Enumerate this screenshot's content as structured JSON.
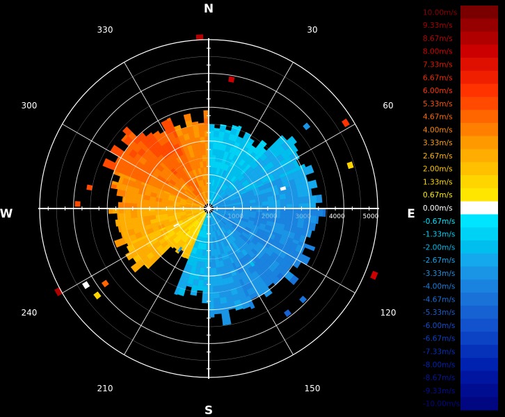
{
  "chart_data": {
    "type": "polar-ppi-velocity",
    "title": "",
    "compass": {
      "north": "N",
      "east": "E",
      "south": "S",
      "west": "W"
    },
    "azimuth_labels": [
      "30",
      "60",
      "120",
      "150",
      "210",
      "240",
      "300",
      "330"
    ],
    "azimuth_values": [
      30,
      60,
      120,
      150,
      210,
      240,
      300,
      330
    ],
    "range_labels": [
      "1000",
      "2000",
      "3000",
      "4000",
      "5000"
    ],
    "range_values": [
      1000,
      2000,
      3000,
      4000,
      5000
    ],
    "range_max": 5000,
    "grid": true,
    "legend_position": "right",
    "colorbar": {
      "unit": "m/s",
      "labels": [
        "10.00m/s",
        "9.33m/s",
        "8.67m/s",
        "8.00m/s",
        "7.33m/s",
        "6.67m/s",
        "6.00m/s",
        "5.33m/s",
        "4.67m/s",
        "4.00m/s",
        "3.33m/s",
        "2.67m/s",
        "2.00m/s",
        "1.33m/s",
        "0.67m/s",
        "0.00m/s",
        "-0.67m/s",
        "-1.33m/s",
        "-2.00m/s",
        "-2.67m/s",
        "-3.33m/s",
        "-4.00m/s",
        "-4.67m/s",
        "-5.33m/s",
        "-6.00m/s",
        "-6.67m/s",
        "-7.33m/s",
        "-8.00m/s",
        "-8.67m/s",
        "-9.33m/s",
        "-10.00m/s"
      ],
      "values": [
        10.0,
        9.33,
        8.67,
        8.0,
        7.33,
        6.67,
        6.0,
        5.33,
        4.67,
        4.0,
        3.33,
        2.67,
        2.0,
        1.33,
        0.67,
        0.0,
        -0.67,
        -1.33,
        -2.0,
        -2.67,
        -3.33,
        -4.0,
        -4.67,
        -5.33,
        -6.0,
        -6.67,
        -7.33,
        -8.0,
        -8.67,
        -9.33,
        -10.0
      ],
      "colors": [
        "#7a0000",
        "#960000",
        "#b00000",
        "#cc0000",
        "#e01000",
        "#f01f00",
        "#ff3300",
        "#ff4a00",
        "#ff6600",
        "#ff8000",
        "#ff9900",
        "#ffad00",
        "#ffc000",
        "#ffd500",
        "#ffe600",
        "#ffffff",
        "#00e5ff",
        "#00d2f5",
        "#00bfee",
        "#14a8ec",
        "#1a95e6",
        "#1a83e0",
        "#1872d8",
        "#1662d2",
        "#1252cc",
        "#0c42c4",
        "#0632ba",
        "#0022b0",
        "#0016a0",
        "#000d90",
        "#000780"
      ],
      "label_colors": [
        "#8b0000",
        "#a00000",
        "#b80000",
        "#d00000",
        "#e01a00",
        "#f02a00",
        "#ff3300",
        "#ff5000",
        "#ff6a00",
        "#ff8800",
        "#ffa000",
        "#ffb400",
        "#ffc800",
        "#ffdc00",
        "#ffee00",
        "#ffffff",
        "#00e5ff",
        "#00d0f5",
        "#00bcee",
        "#12a5ec",
        "#1892e6",
        "#1880e0",
        "#166fd8",
        "#145fd2",
        "#104fcc",
        "#0a40c4",
        "#0530ba",
        "#0022b0",
        "#0018a0",
        "#000f90",
        "#000880"
      ]
    },
    "velocity_field": {
      "description_values": "sector-wise approximate radial velocity (m/s) vs range (m)",
      "sectors": [
        {
          "az_start": 0,
          "az_end": 22,
          "max_range": 2600,
          "v_near": -2.0,
          "v_far": -1.3
        },
        {
          "az_start": 22,
          "az_end": 45,
          "max_range": 2500,
          "v_near": -2.5,
          "v_far": -1.3
        },
        {
          "az_start": 45,
          "az_end": 67,
          "max_range": 3200,
          "v_near": -3.0,
          "v_far": -2.0
        },
        {
          "az_start": 67,
          "az_end": 90,
          "max_range": 3400,
          "v_near": -3.3,
          "v_far": -2.7
        },
        {
          "az_start": 90,
          "az_end": 112,
          "max_range": 3400,
          "v_near": -3.3,
          "v_far": -4.0
        },
        {
          "az_start": 112,
          "az_end": 135,
          "max_range": 3300,
          "v_near": -3.3,
          "v_far": -4.0
        },
        {
          "az_start": 135,
          "az_end": 157,
          "max_range": 3300,
          "v_near": -2.7,
          "v_far": -4.0
        },
        {
          "az_start": 157,
          "az_end": 180,
          "max_range": 3400,
          "v_near": -2.7,
          "v_far": -3.3
        },
        {
          "az_start": 180,
          "az_end": 202,
          "max_range": 2700,
          "v_near": -1.3,
          "v_far": -2.7
        },
        {
          "az_start": 202,
          "az_end": 225,
          "max_range": 1600,
          "v_near": 0.7,
          "v_far": 2.0
        },
        {
          "az_start": 225,
          "az_end": 247,
          "max_range": 2800,
          "v_near": 1.3,
          "v_far": 2.7
        },
        {
          "az_start": 247,
          "az_end": 270,
          "max_range": 3000,
          "v_near": 2.0,
          "v_far": 3.3
        },
        {
          "az_start": 270,
          "az_end": 292,
          "max_range": 2900,
          "v_near": 2.7,
          "v_far": 4.0
        },
        {
          "az_start": 292,
          "az_end": 315,
          "max_range": 3300,
          "v_near": 3.3,
          "v_far": 5.3
        },
        {
          "az_start": 315,
          "az_end": 337,
          "max_range": 2900,
          "v_near": 4.0,
          "v_far": 5.3
        },
        {
          "az_start": 337,
          "az_end": 360,
          "max_range": 2800,
          "v_near": 3.3,
          "v_far": 4.0
        }
      ],
      "outliers": [
        {
          "az": 357,
          "range": 5000,
          "v": 8.7
        },
        {
          "az": 10,
          "range": 3800,
          "v": 8.0
        },
        {
          "az": 50,
          "range": 3700,
          "v": -3.3
        },
        {
          "az": 58,
          "range": 4700,
          "v": 6.0
        },
        {
          "az": 73,
          "range": 4300,
          "v": 1.3
        },
        {
          "az": 112,
          "range": 5200,
          "v": 8.0
        },
        {
          "az": 134,
          "range": 3800,
          "v": -4.7
        },
        {
          "az": 143,
          "range": 3800,
          "v": -5.3
        },
        {
          "az": 142,
          "range": 2000,
          "v": -2.0
        },
        {
          "az": 215,
          "range": 1400,
          "v": -3.3
        },
        {
          "az": 232,
          "range": 4100,
          "v": 1.3
        },
        {
          "az": 234,
          "range": 3700,
          "v": 4.7
        },
        {
          "az": 241,
          "range": 5000,
          "v": 8.7
        },
        {
          "az": 280,
          "range": 3500,
          "v": 5.3
        },
        {
          "az": 283,
          "range": 2800,
          "v": 4.7
        },
        {
          "az": 272,
          "range": 3800,
          "v": 5.3
        },
        {
          "az": 75,
          "range": 2200,
          "v": 0.0
        },
        {
          "az": 243,
          "range": 1000,
          "v": 0.0
        },
        {
          "az": 238,
          "range": 4200,
          "v": 0.0
        }
      ]
    }
  }
}
